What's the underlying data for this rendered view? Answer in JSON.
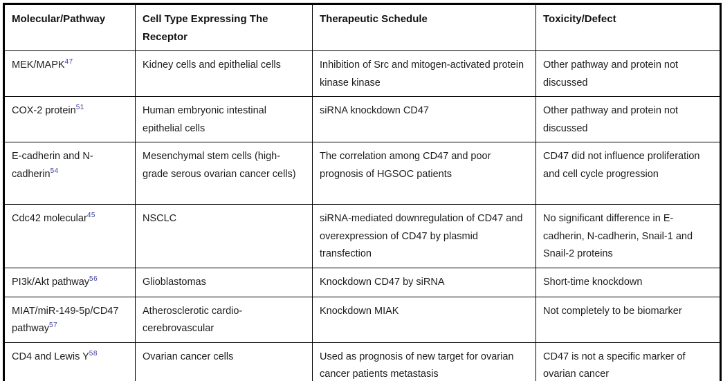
{
  "table": {
    "superscript_color": "#3d3d9e",
    "border_color": "#000000",
    "text_color": "#1c1c1c",
    "headers": [
      "Molecular/Pathway",
      "Cell Type Expressing The Receptor",
      "Therapeutic Schedule",
      "Toxicity/Defect"
    ],
    "rows": [
      {
        "molecular": "MEK/MAPK",
        "ref": "47",
        "cell_type": "Kidney cells and epithelial cells",
        "schedule": "Inhibition of Src and mitogen-activated protein kinase kinase",
        "toxicity": "Other pathway and protein not discussed"
      },
      {
        "molecular": "COX-2 protein",
        "ref": "51",
        "cell_type": "Human embryonic intestinal epithelial cells",
        "schedule": "siRNA knockdown CD47",
        "toxicity": "Other pathway and protein not discussed"
      },
      {
        "molecular": "E-cadherin and N-cadherin",
        "ref": "54",
        "cell_type": "Mesenchymal stem cells (high-grade serous ovarian cancer cells)",
        "schedule": "The correlation among CD47 and poor prognosis of HGSOC patients",
        "toxicity": "CD47 did not influence proliferation and cell cycle progression"
      },
      {
        "molecular": "Cdc42 molecular",
        "ref": "45",
        "cell_type": "NSCLC",
        "schedule": "siRNA-mediated downregulation of CD47 and overexpression of CD47 by plasmid transfection",
        "toxicity": "No significant difference in E-cadherin, N-cadherin, Snail-1 and Snail-2 proteins"
      },
      {
        "molecular": "PI3k/Akt pathway",
        "ref": "56",
        "cell_type": "Glioblastomas",
        "schedule": "Knockdown CD47 by siRNA",
        "toxicity": "Short-time knockdown"
      },
      {
        "molecular": "MIAT/miR-149-5p/CD47 pathway",
        "ref": "57",
        "cell_type": "Atherosclerotic cardio-cerebrovascular",
        "schedule": "Knockdown MIAK",
        "toxicity": "Not completely to be biomarker"
      },
      {
        "molecular": "CD4 and Lewis Y",
        "ref": "58",
        "cell_type": "Ovarian cancer cells",
        "schedule": "Used as prognosis of new target for ovarian cancer patients metastasis",
        "toxicity": "CD47 is not a specific marker of ovarian cancer"
      }
    ]
  }
}
